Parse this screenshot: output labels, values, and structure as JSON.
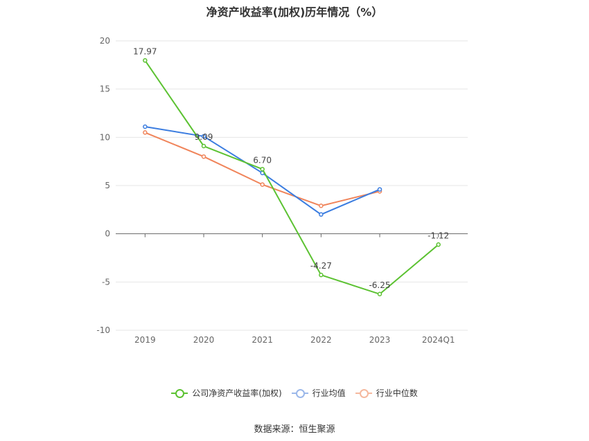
{
  "chart_data": {
    "type": "line",
    "title": "净资产收益率(加权)历年情况（%）",
    "categories": [
      "2019",
      "2020",
      "2021",
      "2022",
      "2023",
      "2024Q1"
    ],
    "ylim": [
      -10,
      20
    ],
    "yticks": [
      20,
      15,
      10,
      5,
      0,
      -5,
      -10
    ],
    "grid": true,
    "legend_position": "bottom",
    "series": [
      {
        "name": "公司净资产收益率(加权)",
        "color": "#5cc232",
        "values": [
          17.97,
          9.09,
          6.7,
          -4.27,
          -6.25,
          -1.12
        ],
        "labels": [
          "17.97",
          "9.09",
          "6.70",
          "-4.27",
          "-6.25",
          "-1.12"
        ]
      },
      {
        "name": "行业均值",
        "color": "#3b7de0",
        "values": [
          11.1,
          10.1,
          6.3,
          2.0,
          4.6,
          null
        ]
      },
      {
        "name": "行业中位数",
        "color": "#f0845a",
        "values": [
          10.5,
          8.0,
          5.1,
          2.9,
          4.4,
          null
        ]
      }
    ]
  },
  "source": "数据来源：恒生聚源"
}
